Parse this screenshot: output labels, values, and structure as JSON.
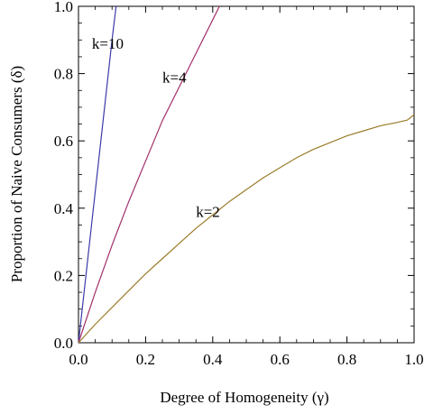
{
  "chart_data": {
    "type": "line",
    "xlabel": "Degree of Homogeneity (γ)",
    "ylabel": "Proportion of Naive Consumers (δ)",
    "xlim": [
      0,
      1
    ],
    "ylim": [
      0,
      1
    ],
    "xticks": [
      "0.0",
      "0.2",
      "0.4",
      "0.6",
      "0.8",
      "1.0"
    ],
    "yticks": [
      "0.0",
      "0.2",
      "0.4",
      "0.6",
      "0.8",
      "1.0"
    ],
    "xtick_values": [
      0,
      0.2,
      0.4,
      0.6,
      0.8,
      1.0
    ],
    "ytick_values": [
      0,
      0.2,
      0.4,
      0.6,
      0.8,
      1.0
    ],
    "grid": false,
    "series": [
      {
        "name": "k=10",
        "color": "#3b3ba8",
        "label_at": [
          0.04,
          0.89
        ],
        "x": [
          0,
          0.02,
          0.04,
          0.06,
          0.08,
          0.1,
          0.112
        ],
        "y": [
          0,
          0.18,
          0.36,
          0.54,
          0.72,
          0.9,
          1.0
        ]
      },
      {
        "name": "k=4",
        "color": "#a0306a",
        "label_at": [
          0.25,
          0.79
        ],
        "x": [
          0,
          0.05,
          0.1,
          0.15,
          0.2,
          0.25,
          0.3,
          0.35,
          0.4,
          0.42
        ],
        "y": [
          0,
          0.15,
          0.29,
          0.42,
          0.54,
          0.66,
          0.76,
          0.86,
          0.96,
          1.0
        ]
      },
      {
        "name": "k=2",
        "color": "#9a7c2a",
        "label_at": [
          0.35,
          0.39
        ],
        "x": [
          0,
          0.05,
          0.1,
          0.15,
          0.2,
          0.25,
          0.3,
          0.35,
          0.4,
          0.45,
          0.5,
          0.55,
          0.6,
          0.65,
          0.7,
          0.75,
          0.8,
          0.85,
          0.9,
          0.95,
          0.98,
          1.0
        ],
        "y": [
          0,
          0.055,
          0.105,
          0.155,
          0.205,
          0.25,
          0.295,
          0.34,
          0.38,
          0.42,
          0.455,
          0.49,
          0.52,
          0.55,
          0.575,
          0.595,
          0.615,
          0.63,
          0.645,
          0.655,
          0.662,
          0.678
        ]
      }
    ]
  }
}
